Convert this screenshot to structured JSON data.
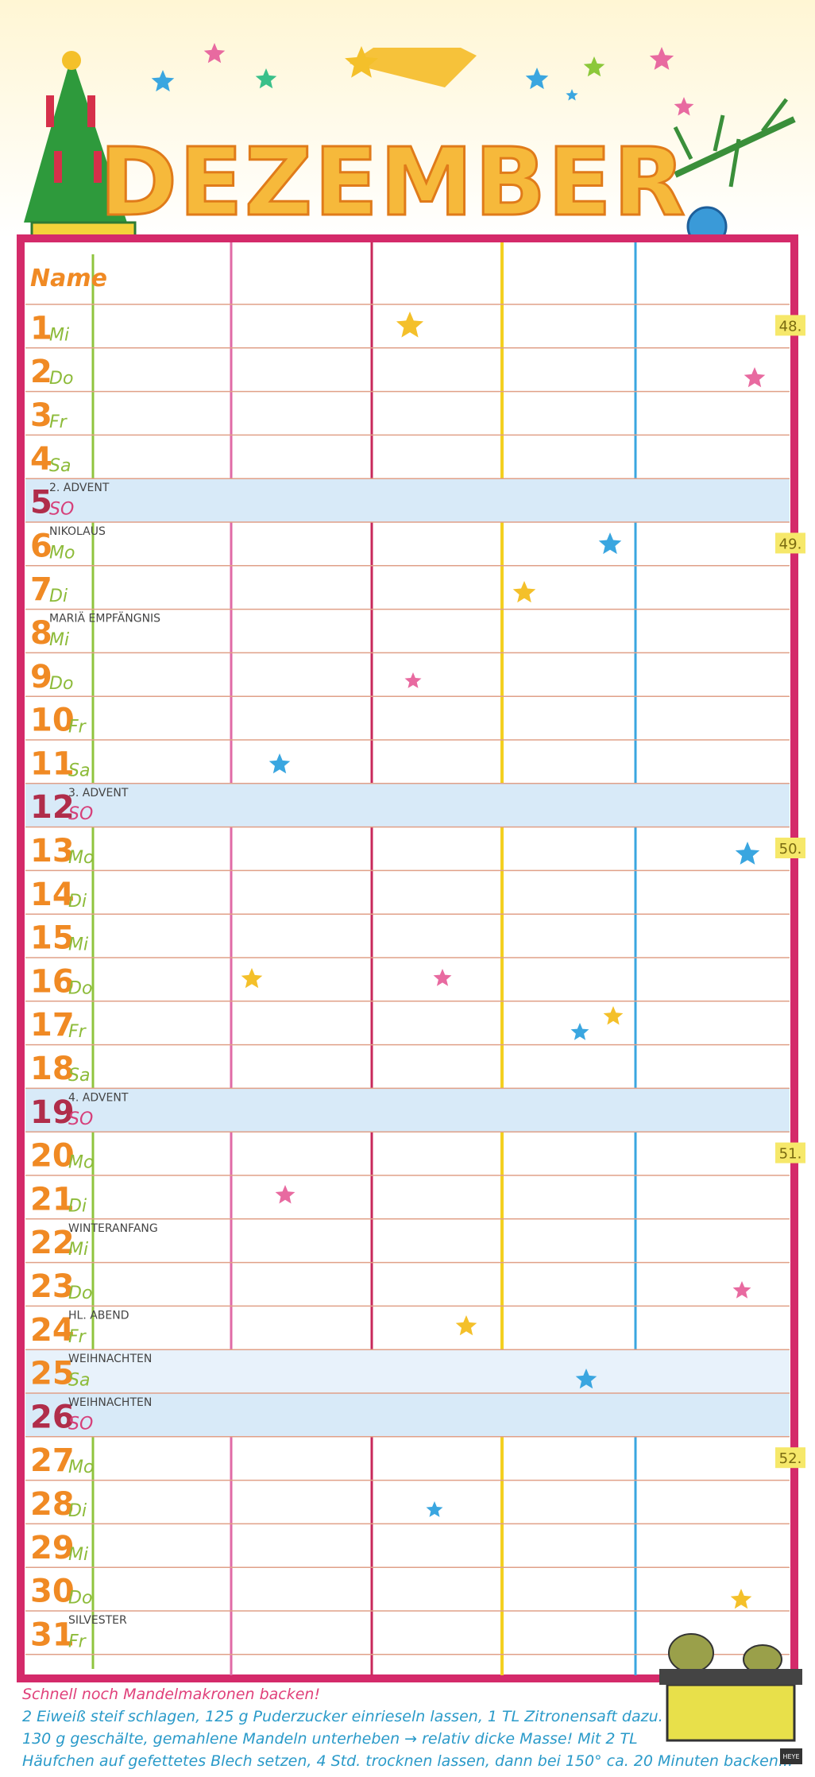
{
  "header": {
    "title": "DEZEMBER",
    "name_label": "Name"
  },
  "days": [
    {
      "day": "1",
      "weekday": "Mi",
      "week": "48."
    },
    {
      "day": "2",
      "weekday": "Do"
    },
    {
      "day": "3",
      "weekday": "Fr"
    },
    {
      "day": "4",
      "weekday": "Sa"
    },
    {
      "day": "5",
      "weekday": "SO",
      "note": "2. ADVENT"
    },
    {
      "day": "6",
      "weekday": "Mo",
      "note": "NIKOLAUS",
      "week": "49."
    },
    {
      "day": "7",
      "weekday": "Di"
    },
    {
      "day": "8",
      "weekday": "Mi",
      "note": "MARIÄ EMPFÄNGNIS"
    },
    {
      "day": "9",
      "weekday": "Do"
    },
    {
      "day": "10",
      "weekday": "Fr"
    },
    {
      "day": "11",
      "weekday": "Sa"
    },
    {
      "day": "12",
      "weekday": "SO",
      "note": "3. ADVENT"
    },
    {
      "day": "13",
      "weekday": "Mo",
      "week": "50."
    },
    {
      "day": "14",
      "weekday": "Di"
    },
    {
      "day": "15",
      "weekday": "Mi"
    },
    {
      "day": "16",
      "weekday": "Do"
    },
    {
      "day": "17",
      "weekday": "Fr"
    },
    {
      "day": "18",
      "weekday": "Sa"
    },
    {
      "day": "19",
      "weekday": "SO",
      "note": "4. ADVENT"
    },
    {
      "day": "20",
      "weekday": "Mo",
      "week": "51."
    },
    {
      "day": "21",
      "weekday": "Di"
    },
    {
      "day": "22",
      "weekday": "Mi",
      "note": "WINTERANFANG"
    },
    {
      "day": "23",
      "weekday": "Do"
    },
    {
      "day": "24",
      "weekday": "Fr",
      "note": "HL. ABEND"
    },
    {
      "day": "25",
      "weekday": "Sa",
      "note": "WEIHNACHTEN"
    },
    {
      "day": "26",
      "weekday": "SO",
      "note": "WEIHNACHTEN"
    },
    {
      "day": "27",
      "weekday": "Mo",
      "week": "52."
    },
    {
      "day": "28",
      "weekday": "Di"
    },
    {
      "day": "29",
      "weekday": "Mi"
    },
    {
      "day": "30",
      "weekday": "Do"
    },
    {
      "day": "31",
      "weekday": "Fr",
      "note": "SILVESTER"
    }
  ],
  "recipe": {
    "title": "Schnell noch Mandelmakronen backen!",
    "lines": [
      "2 Eiweiß steif schlagen, 125 g Puderzucker einrieseln lassen, 1 TL Zitronensaft dazu.",
      "130 g geschälte, gemahlene Mandeln unterheben → relativ dicke Masse! Mit 2 TL",
      "Häufchen auf gefettetes Blech setzen, 4 Std. trocknen lassen, dann bei 150° ca. 20 Minuten backen..."
    ]
  },
  "logo": "HEYE"
}
